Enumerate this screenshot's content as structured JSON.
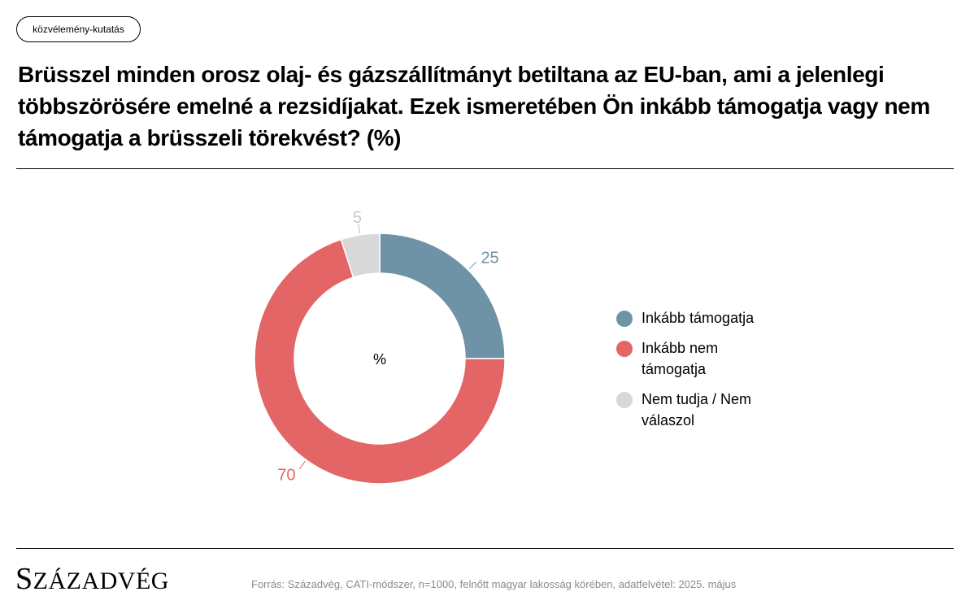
{
  "tag": {
    "label": "közvélemény-kutatás"
  },
  "title": "Brüsszel minden orosz olaj- és gázszállítmányt betiltana az EU-ban, ami a jelenlegi többszörösére emelné a rezsidíjakat. Ezek ismeretében Ön inkább támogatja vagy nem támogatja a brüsszeli törekvést? (%)",
  "chart_data": {
    "type": "pie",
    "donut": true,
    "center_label": "%",
    "legend_position": "right",
    "categories": [
      "Inkább támogatja",
      "Inkább nem támogatja",
      "Nem tudja / Nem válaszol"
    ],
    "values": [
      25,
      70,
      5
    ],
    "colors": [
      "#6e92a6",
      "#e36565",
      "#d8d8d8"
    ],
    "data_labels": [
      "25",
      "70",
      "5"
    ]
  },
  "legend": {
    "items": [
      {
        "label": "Inkább támogatja",
        "color": "#6e92a6"
      },
      {
        "label": "Inkább nem támogatja",
        "color": "#e36565"
      },
      {
        "label": "Nem tudja / Nem válaszol",
        "color": "#d8d8d8"
      }
    ]
  },
  "footer": {
    "logo": "Századvég",
    "source": "Forrás: Századvég, CATI-módszer, n=1000, felnőtt magyar lakosság körében, adatfelvétel: 2025. május"
  }
}
